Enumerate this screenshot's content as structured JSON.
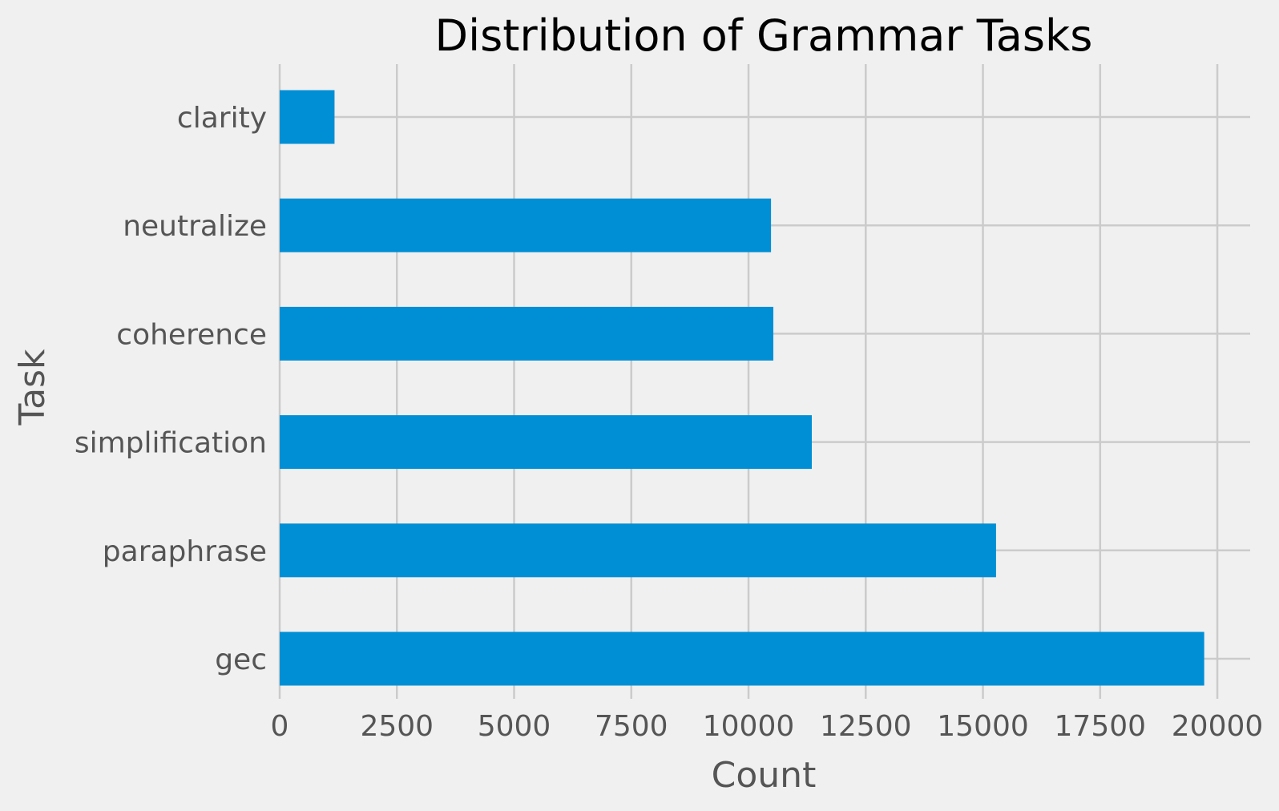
{
  "chart_data": {
    "type": "bar",
    "orientation": "horizontal",
    "title": "Distribution of Grammar Tasks",
    "xlabel": "Count",
    "ylabel": "Task",
    "categories": [
      "clarity",
      "neutralize",
      "coherence",
      "simplification",
      "paraphrase",
      "gec"
    ],
    "values": [
      1170,
      10480,
      10530,
      11350,
      15280,
      19720
    ],
    "xlim": [
      0,
      20700
    ],
    "xticks": [
      0,
      2500,
      5000,
      7500,
      10000,
      12500,
      15000,
      17500,
      20000
    ],
    "xtick_labels": [
      "0",
      "2500",
      "5000",
      "7500",
      "10000",
      "12500",
      "15000",
      "17500",
      "20000"
    ],
    "grid": true,
    "legend": "none",
    "colors": {
      "bar": "#008fd5",
      "background": "#f0f0f0",
      "grid": "#cbcbcb",
      "title": "#000000",
      "label": "#555555"
    }
  }
}
